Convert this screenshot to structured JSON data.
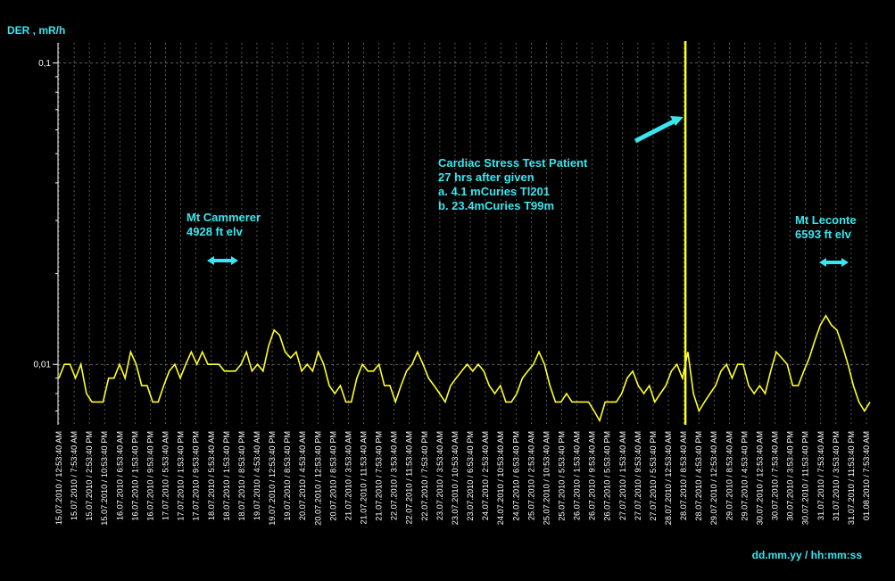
{
  "chart_data": {
    "type": "line",
    "ylabel": "DER , mR/h",
    "xlabel": "dd.mm.yy / hh:mm:ss",
    "yscale": "log",
    "ylim": [
      0.0063,
      0.119
    ],
    "yticks": [
      {
        "value": 0.1,
        "label": "0,1"
      },
      {
        "value": 0.01,
        "label": "0,01"
      }
    ],
    "grid": true,
    "x_tick_labels": [
      "15.07.2010 / 12:53:40 AM",
      "15.07.2010 / 7:53:40 AM",
      "15.07.2010 / 2:53:40 PM",
      "15.07.2010 / 10:53:40 PM",
      "16.07.2010 / 6:53:40 AM",
      "16.07.2010 / 1:53:40 PM",
      "16.07.2010 / 9:53:40 PM",
      "17.07.2010 / 5:53:40 AM",
      "17.07.2010 / 1:53:40 PM",
      "17.07.2010 / 9:53:40 PM",
      "18.07.2010 / 5:53:40 AM",
      "18.07.2010 / 1:53:40 PM",
      "18.07.2010 / 8:53:40 PM",
      "19.07.2010 / 4:53:40 AM",
      "19.07.2010 / 12:53:40 PM",
      "19.07.2010 / 8:53:40 PM",
      "20.07.2010 / 4:53:40 AM",
      "20.07.2010 / 12:53:40 PM",
      "20.07.2010 / 8:53:40 PM",
      "21.07.2010 / 3:53:40 AM",
      "21.07.2010 / 11:53:40 AM",
      "21.07.2010 / 7:53:40 PM",
      "22.07.2010 / 3:53:40 AM",
      "22.07.2010 / 11:53:40 AM",
      "22.07.2010 / 7:53:40 PM",
      "23.07.2010 / 3:53:40 AM",
      "23.07.2010 / 10:53:40 AM",
      "23.07.2010 / 6:53:40 PM",
      "24.07.2010 / 2:53:40 AM",
      "24.07.2010 / 10:53:40 AM",
      "24.07.2010 / 6:53:40 PM",
      "25.07.2010 / 2:53:40 AM",
      "25.07.2010 / 10:53:40 AM",
      "25.07.2010 / 5:53:40 PM",
      "26.07.2010 / 1:53:40 AM",
      "26.07.2010 / 9:53:40 AM",
      "26.07.2010 / 5:53:40 PM",
      "27.07.2010 / 1:53:40 AM",
      "27.07.2010 / 9:53:40 AM",
      "27.07.2010 / 5:53:40 PM",
      "28.07.2010 / 12:53:40 AM",
      "28.07.2010 / 8:53:40 AM",
      "28.07.2010 / 4:53:40 PM",
      "29.07.2010 / 12:53:40 AM",
      "29.07.2010 / 8:53:40 AM",
      "29.07.2010 / 4:53:40 PM",
      "30.07.2010 / 12:53:40 AM",
      "30.07.2010 / 7:53:40 AM",
      "30.07.2010 / 3:53:40 PM",
      "30.07.2010 / 11:53:40 PM",
      "31.07.2010 / 7:53:40 AM",
      "31.07.2010 / 3:53:40 PM",
      "31.07.2010 / 11:53:40 PM",
      "01.08.2010 / 7:53:40 AM"
    ],
    "series": [
      {
        "color": "#ffff22",
        "values": [
          0.009,
          0.01,
          0.01,
          0.009,
          0.01,
          0.008,
          0.0075,
          0.0075,
          0.0075,
          0.009,
          0.009,
          0.01,
          0.009,
          0.011,
          0.01,
          0.0085,
          0.0085,
          0.0075,
          0.0075,
          0.0085,
          0.0095,
          0.01,
          0.009,
          0.01,
          0.011,
          0.01,
          0.011,
          0.01,
          0.01,
          0.01,
          0.0095,
          0.0095,
          0.0095,
          0.01,
          0.011,
          0.0095,
          0.01,
          0.0095,
          0.0115,
          0.013,
          0.0125,
          0.011,
          0.0105,
          0.011,
          0.0095,
          0.01,
          0.0095,
          0.011,
          0.01,
          0.0085,
          0.008,
          0.0085,
          0.0075,
          0.0075,
          0.009,
          0.01,
          0.0095,
          0.0095,
          0.01,
          0.0085,
          0.0085,
          0.0075,
          0.0085,
          0.0095,
          0.01,
          0.011,
          0.01,
          0.009,
          0.0085,
          0.008,
          0.0075,
          0.0085,
          0.009,
          0.0095,
          0.01,
          0.0095,
          0.01,
          0.0095,
          0.0085,
          0.008,
          0.0085,
          0.0075,
          0.0075,
          0.008,
          0.009,
          0.0095,
          0.01,
          0.011,
          0.01,
          0.0085,
          0.0075,
          0.0075,
          0.008,
          0.0075,
          0.0075,
          0.0075,
          0.0075,
          0.007,
          0.0065,
          0.0075,
          0.0075,
          0.0075,
          0.008,
          0.009,
          0.0095,
          0.0085,
          0.008,
          0.0085,
          0.0075,
          0.008,
          0.0085,
          0.0095,
          0.01,
          0.009,
          0.011,
          0.008,
          0.007,
          0.0075,
          0.008,
          0.0085,
          0.0095,
          0.01,
          0.009,
          0.01,
          0.01,
          0.0085,
          0.008,
          0.0085,
          0.008,
          0.0095,
          0.011,
          0.0105,
          0.01,
          0.0085,
          0.0085,
          0.0095,
          0.0105,
          0.012,
          0.0135,
          0.0145,
          0.0135,
          0.013,
          0.0115,
          0.01,
          0.0085,
          0.0075,
          0.007,
          0.0075
        ]
      }
    ],
    "event_marker_label": "28.07.2010 / 8:53:40 AM",
    "annotations": {
      "cardiac": [
        "Cardiac Stress Test Patient",
        "27 hrs after given",
        "a. 4.1 mCuries Tl201",
        "b. 23.4mCuries T99m"
      ],
      "cammerer": [
        "Mt Cammerer",
        "4928 ft elv"
      ],
      "leconte": [
        "Mt Leconte",
        "6593 ft elv"
      ]
    },
    "colors": {
      "background": "#000000",
      "series": "#ffff22",
      "annotation": "#39e6ef",
      "grid": "#7a7a7a",
      "axis": "#ffffff"
    }
  }
}
